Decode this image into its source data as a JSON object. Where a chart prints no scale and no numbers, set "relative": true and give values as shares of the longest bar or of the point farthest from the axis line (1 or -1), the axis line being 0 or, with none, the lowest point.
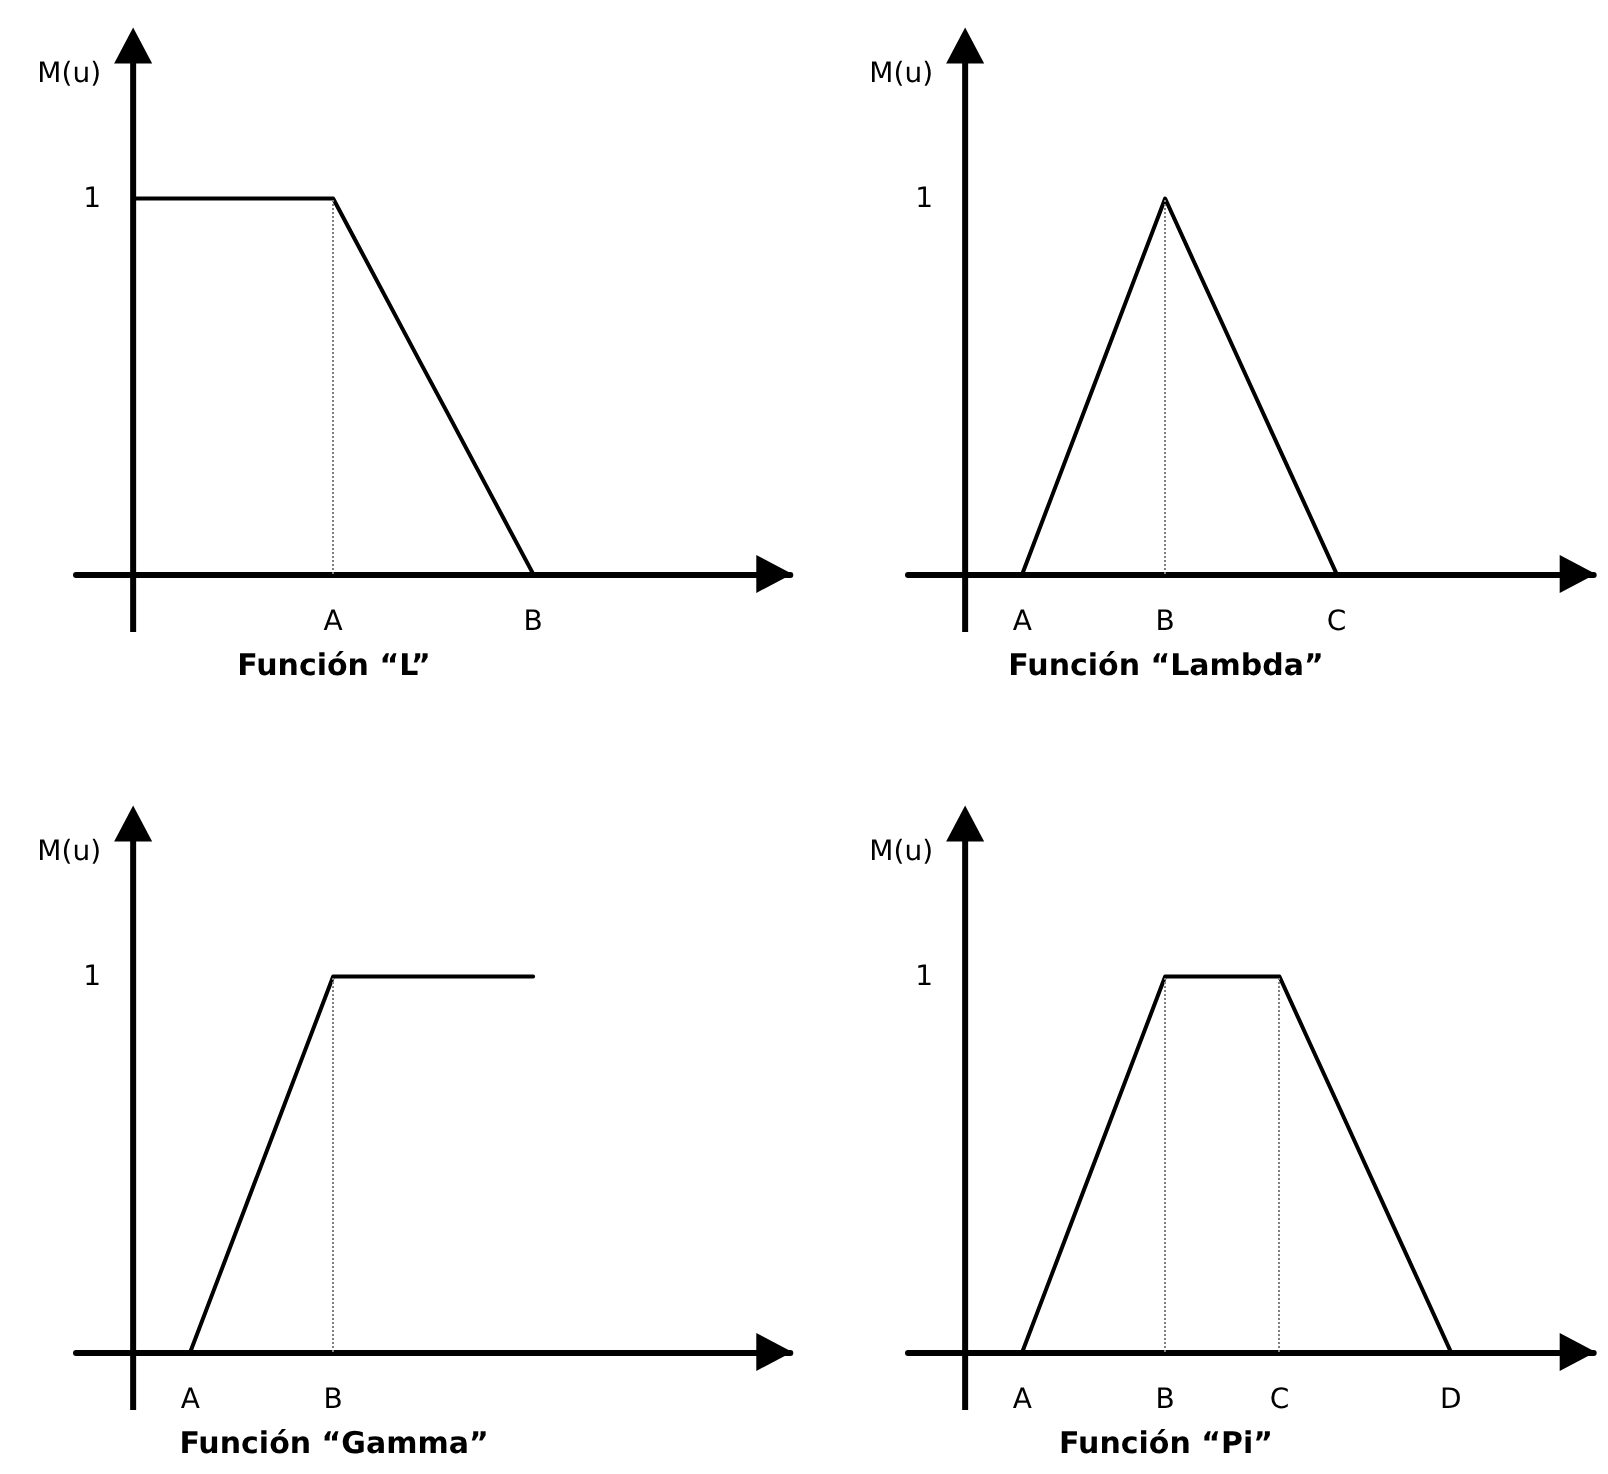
{
  "chart_data": [
    {
      "type": "line",
      "relative": true,
      "title": "Función “L”",
      "ylabel": "M(u)",
      "marker": "none",
      "categories": [
        null,
        null,
        null,
        null,
        null,
        null,
        null,
        null,
        null,
        "A",
        null,
        null,
        null,
        null,
        null,
        null,
        "B",
        null,
        null,
        null,
        null,
        null,
        null,
        null,
        null,
        null
      ],
      "values": [
        null,
        null,
        1,
        1,
        1,
        1,
        1,
        1,
        1,
        1,
        0.857,
        0.714,
        0.571,
        0.429,
        0.286,
        0.143,
        0,
        null,
        null,
        null,
        null,
        null,
        null,
        null,
        null,
        null
      ],
      "color": "#000000",
      "ref_lines": [
        {
          "axis": "x",
          "value": "A",
          "color": "#808080",
          "line_style": "dotted"
        }
      ],
      "annotations": [
        "1"
      ]
    },
    {
      "type": "line",
      "relative": true,
      "title": "Función “Lambda”",
      "ylabel": "M(u)",
      "marker": "none",
      "categories": [
        null,
        null,
        null,
        null,
        "A",
        null,
        null,
        null,
        null,
        "B",
        null,
        null,
        null,
        null,
        null,
        "C",
        null,
        null,
        null,
        null,
        null,
        null,
        null,
        null,
        null
      ],
      "values": [
        null,
        null,
        null,
        null,
        0,
        0.2,
        0.4,
        0.6,
        0.8,
        1,
        0.833,
        0.667,
        0.5,
        0.333,
        0.167,
        0,
        null,
        null,
        null,
        null,
        null,
        null,
        null,
        null,
        null
      ],
      "color": "#000000",
      "ref_lines": [
        {
          "axis": "x",
          "value": "B",
          "color": "#808080",
          "line_style": "dotted"
        }
      ],
      "annotations": [
        "1"
      ]
    },
    {
      "type": "line",
      "relative": true,
      "title": "Función “Gamma”",
      "ylabel": "M(u)",
      "marker": "none",
      "categories": [
        null,
        null,
        null,
        null,
        "A",
        null,
        null,
        null,
        null,
        "B",
        null,
        null,
        null,
        null,
        null,
        null,
        null,
        null,
        null,
        null,
        null,
        null,
        null,
        null,
        null,
        null
      ],
      "values": [
        null,
        null,
        null,
        null,
        0,
        0.2,
        0.4,
        0.6,
        0.8,
        1,
        1,
        1,
        1,
        1,
        1,
        1,
        1,
        null,
        null,
        null,
        null,
        null,
        null,
        null,
        null,
        null
      ],
      "color": "#000000",
      "ref_lines": [
        {
          "axis": "x",
          "value": "B",
          "color": "#808080",
          "line_style": "dotted"
        }
      ],
      "annotations": [
        "1"
      ]
    },
    {
      "type": "line",
      "relative": true,
      "title": "Función “Pi”",
      "ylabel": "M(u)",
      "marker": "none",
      "categories": [
        null,
        null,
        null,
        null,
        "A",
        null,
        null,
        null,
        null,
        "B",
        null,
        null,
        null,
        "C",
        null,
        null,
        null,
        null,
        null,
        "D",
        null,
        null,
        null,
        null,
        null
      ],
      "values": [
        null,
        null,
        null,
        null,
        0,
        0.2,
        0.4,
        0.6,
        0.8,
        1,
        1,
        1,
        1,
        1,
        0.833,
        0.667,
        0.5,
        0.333,
        0.167,
        0,
        null,
        null,
        null,
        null,
        null
      ],
      "color": "#000000",
      "ref_lines": [
        {
          "axis": "x",
          "value": "B",
          "color": "#808080",
          "line_style": "dotted"
        },
        {
          "axis": "x",
          "value": "C",
          "color": "#808080",
          "line_style": "dotted"
        }
      ],
      "annotations": [
        "1"
      ]
    }
  ]
}
